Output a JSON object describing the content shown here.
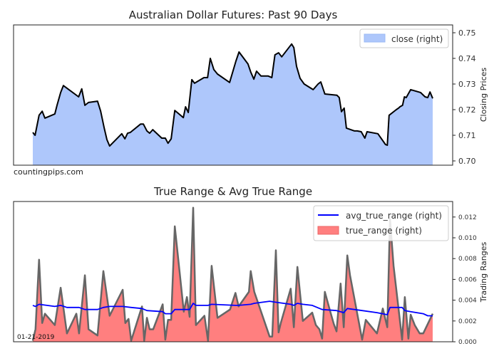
{
  "chart_data": [
    {
      "type": "area",
      "title": "Australian Dollar Futures: Past 90 Days",
      "ylabel": "Closing Prices",
      "xlabel": "",
      "ylim": [
        0.698,
        0.753
      ],
      "xlim_days": [
        -4.3,
        93.4
      ],
      "yticks": [
        "0.70",
        "0.71",
        "0.72",
        "0.73",
        "0.74",
        "0.75"
      ],
      "ytick_values": [
        0.7,
        0.71,
        0.72,
        0.73,
        0.74,
        0.75
      ],
      "legend": {
        "label": "close (right)",
        "placement": "top-right"
      },
      "watermark": "countingpips.com",
      "colors": {
        "fill": "#aec7fb",
        "line": "#000000"
      },
      "series": [
        {
          "name": "close",
          "x": [
            0,
            0.5,
            1.4,
            2.1,
            2.7,
            4.9,
            5.4,
            6.2,
            6.8,
            10.2,
            10.9,
            11.6,
            12.4,
            14.4,
            15.1,
            15.9,
            16.5,
            17.1,
            19.8,
            20.5,
            21.1,
            21.7,
            24.0,
            24.6,
            25.4,
            26.0,
            26.7,
            28.7,
            29.5,
            30.1,
            30.8,
            31.6,
            33.5,
            34.0,
            34.6,
            35.4,
            36.0,
            38.1,
            38.9,
            39.5,
            40.3,
            41.1,
            43.8,
            45.2,
            45.9,
            47.9,
            48.5,
            49.2,
            49.8,
            50.8,
            52.4,
            53.2,
            53.9,
            54.7,
            55.4,
            57.6,
            58.1,
            58.7,
            59.5,
            60.4,
            62.4,
            63.5,
            64.1,
            65.0,
            67.7,
            68.2,
            68.7,
            69.3,
            69.8,
            71.6,
            72.2,
            73.1,
            73.9,
            74.4,
            76.8,
            78.5,
            78.9,
            79.3,
            80.9,
            81.4,
            81.7,
            82.3,
            82.7,
            83.1,
            84.1,
            86.3,
            87.3,
            87.9,
            88.4,
            89.0
          ],
          "values": [
            0.7111,
            0.71,
            0.7178,
            0.7194,
            0.7167,
            0.7183,
            0.7217,
            0.7267,
            0.7294,
            0.725,
            0.7281,
            0.7217,
            0.7228,
            0.7233,
            0.7194,
            0.7128,
            0.7083,
            0.7058,
            0.7106,
            0.7086,
            0.7108,
            0.7111,
            0.7144,
            0.7144,
            0.7117,
            0.7108,
            0.7122,
            0.7089,
            0.7089,
            0.7069,
            0.7086,
            0.7197,
            0.7169,
            0.7211,
            0.7189,
            0.7317,
            0.7303,
            0.7325,
            0.7325,
            0.74,
            0.7356,
            0.7339,
            0.7306,
            0.7389,
            0.7425,
            0.7378,
            0.7347,
            0.7319,
            0.735,
            0.7331,
            0.7331,
            0.7325,
            0.7414,
            0.7422,
            0.7406,
            0.7456,
            0.7442,
            0.7369,
            0.7322,
            0.73,
            0.7278,
            0.73,
            0.7308,
            0.7261,
            0.7256,
            0.7247,
            0.7192,
            0.7206,
            0.7128,
            0.7117,
            0.7117,
            0.7114,
            0.7089,
            0.7114,
            0.7106,
            0.7064,
            0.7061,
            0.7178,
            0.72,
            0.7206,
            0.7211,
            0.7217,
            0.725,
            0.7247,
            0.7278,
            0.7267,
            0.725,
            0.7247,
            0.7269,
            0.7244
          ]
        }
      ]
    },
    {
      "type": "area",
      "title": "True Range & Avg True Range",
      "ylabel": "Trading Ranges",
      "xlabel": "",
      "ylim": [
        0.0,
        0.0135
      ],
      "yticks": [
        "0.000",
        "0.002",
        "0.004",
        "0.006",
        "0.008",
        "0.010",
        "0.012"
      ],
      "ytick_values": [
        0,
        0.002,
        0.004,
        0.006,
        0.008,
        0.01,
        0.012
      ],
      "date_label": "01-21-2019",
      "legend": {
        "entries": [
          "avg_true_range (right)",
          "true_range (right)"
        ],
        "placement": "top-right"
      },
      "colors": {
        "tr_fill": "#ff7f7f",
        "tr_line": "#666666",
        "atr_line": "#0000ff"
      },
      "series": [
        {
          "name": "true_range",
          "x": [
            0,
            0.6,
            1.4,
            2.1,
            2.7,
            4.9,
            6.2,
            7.6,
            9.7,
            10.3,
            11.6,
            12.4,
            14.4,
            15.7,
            17.1,
            20.0,
            20.6,
            21.3,
            21.9,
            24.3,
            24.8,
            25.4,
            26.0,
            26.8,
            28.9,
            29.5,
            30.1,
            30.8,
            31.6,
            33.6,
            34.3,
            34.9,
            35.7,
            36.3,
            38.2,
            39.0,
            39.8,
            41.1,
            43.9,
            45.1,
            45.8,
            48.1,
            48.5,
            49.3,
            52.7,
            53.3,
            54.1,
            54.7,
            55.2,
            57.4,
            58.1,
            58.9,
            60.1,
            62.2,
            63.0,
            63.8,
            64.4,
            65.0,
            66.2,
            67.0,
            67.6,
            68.5,
            69.2,
            70.0,
            70.6,
            73.3,
            74.1,
            76.6,
            77.9,
            78.9,
            79.5,
            80.3,
            82.2,
            82.8,
            83.6,
            84.1,
            85.0,
            86.1,
            86.9,
            89.0
          ],
          "values": [
            0.0001,
            0.0012,
            0.0079,
            0.0018,
            0.0027,
            0.0016,
            0.0052,
            0.0008,
            0.0027,
            0.0008,
            0.0064,
            0.0012,
            0.0006,
            0.0068,
            0.0025,
            0.005,
            0.0018,
            0.0022,
            0.0001,
            0.0034,
            0.0001,
            0.0023,
            0.0012,
            0.0012,
            0.0036,
            0.0002,
            0.0021,
            0.0021,
            0.0111,
            0.0029,
            0.0043,
            0.0024,
            0.0129,
            0.0016,
            0.0025,
            0.0001,
            0.0073,
            0.0023,
            0.0031,
            0.0047,
            0.0034,
            0.0048,
            0.0068,
            0.0048,
            0.0005,
            0.0005,
            0.0088,
            0.0009,
            0.0018,
            0.0051,
            0.0014,
            0.0072,
            0.002,
            0.0028,
            0.0016,
            0.0012,
            0.0003,
            0.0048,
            0.0029,
            0.0017,
            0.001,
            0.0056,
            0.0014,
            0.0083,
            0.0064,
            0.0002,
            0.0021,
            0.0008,
            0.0032,
            0.0014,
            0.0118,
            0.0073,
            0.0002,
            0.0043,
            0.0003,
            0.0026,
            0.0016,
            0.0008,
            0.0008,
            0.0027
          ]
        },
        {
          "name": "avg_true_range",
          "x": [
            0,
            0.6,
            1.4,
            4.9,
            6.2,
            7.6,
            10.3,
            11.6,
            14.4,
            15.7,
            17.1,
            20.0,
            21.9,
            24.3,
            25.4,
            28.9,
            29.5,
            30.8,
            31.6,
            34.9,
            35.7,
            36.3,
            39.0,
            39.8,
            45.1,
            45.8,
            48.5,
            49.3,
            52.7,
            54.1,
            57.4,
            58.1,
            58.9,
            60.1,
            62.2,
            64.4,
            67.6,
            69.2,
            70.0,
            73.3,
            76.6,
            78.9,
            79.5,
            82.2,
            82.8,
            84.1,
            86.9,
            87.9,
            89.0
          ],
          "values": [
            0.0035,
            0.0034,
            0.0036,
            0.0034,
            0.0035,
            0.0033,
            0.0033,
            0.0031,
            0.0031,
            0.0033,
            0.0034,
            0.0034,
            0.0033,
            0.0032,
            0.003,
            0.0029,
            0.0027,
            0.0027,
            0.0031,
            0.0031,
            0.0037,
            0.0035,
            0.0035,
            0.0036,
            0.0035,
            0.0035,
            0.0036,
            0.0037,
            0.0039,
            0.0038,
            0.0036,
            0.0035,
            0.0037,
            0.0036,
            0.0035,
            0.0031,
            0.003,
            0.0028,
            0.0032,
            0.003,
            0.0028,
            0.0026,
            0.0033,
            0.0033,
            0.003,
            0.0029,
            0.0027,
            0.0025,
            0.0025
          ]
        }
      ]
    }
  ]
}
